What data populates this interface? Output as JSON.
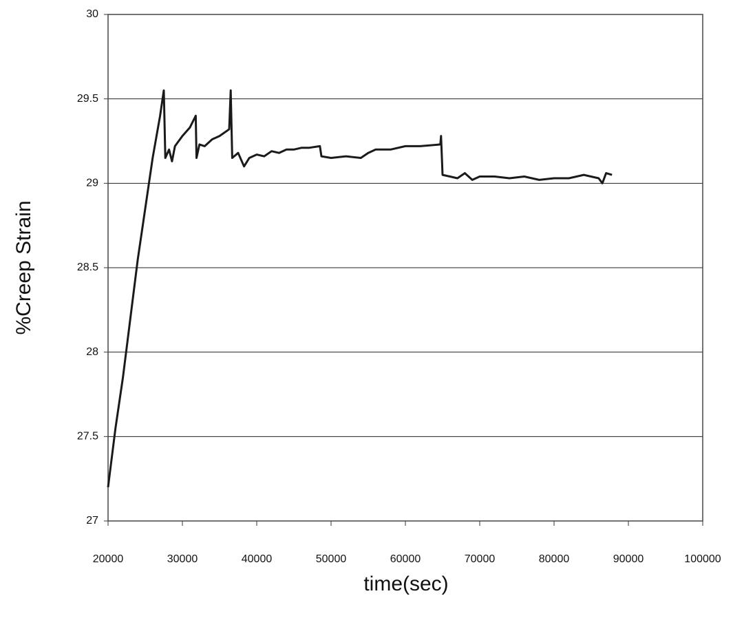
{
  "chart_data": {
    "type": "line",
    "x_label": "time(sec)",
    "y_label": "%Creep Strain",
    "xlim": [
      20000,
      100000
    ],
    "xticks": [
      20000,
      30000,
      40000,
      50000,
      60000,
      70000,
      80000,
      90000,
      100000
    ],
    "ylim": [
      27,
      30
    ],
    "yticks": [
      27,
      27.5,
      28,
      28.5,
      29,
      29.5,
      30
    ],
    "grid": true,
    "series": [
      {
        "color": "#1a1a1a",
        "x": [
          20000,
          21000,
          22000,
          23000,
          24000,
          25000,
          26000,
          27000,
          27500,
          27700,
          28200,
          28600,
          29000,
          30000,
          31000,
          31800,
          31900,
          32300,
          33000,
          34000,
          35000,
          36300,
          36500,
          36700,
          37500,
          38300,
          39000,
          40000,
          41000,
          42000,
          43000,
          44000,
          45000,
          46000,
          47000,
          48500,
          48700,
          50000,
          52000,
          54000,
          55000,
          56000,
          58000,
          60000,
          62000,
          64700,
          64800,
          65000,
          66000,
          67000,
          68000,
          69000,
          70000,
          72000,
          74000,
          76000,
          78000,
          80000,
          82000,
          84000,
          86000,
          86500,
          87000,
          87800
        ],
        "values": [
          27.2,
          27.55,
          27.85,
          28.2,
          28.55,
          28.85,
          29.15,
          29.4,
          29.55,
          29.15,
          29.2,
          29.13,
          29.22,
          29.28,
          29.33,
          29.4,
          29.15,
          29.23,
          29.22,
          29.26,
          29.28,
          29.32,
          29.55,
          29.15,
          29.18,
          29.1,
          29.15,
          29.17,
          29.16,
          29.19,
          29.18,
          29.2,
          29.2,
          29.21,
          29.21,
          29.22,
          29.16,
          29.15,
          29.16,
          29.15,
          29.18,
          29.2,
          29.2,
          29.22,
          29.22,
          29.23,
          29.28,
          29.05,
          29.04,
          29.03,
          29.06,
          29.02,
          29.04,
          29.04,
          29.03,
          29.04,
          29.02,
          29.03,
          29.03,
          29.05,
          29.03,
          29.0,
          29.06,
          29.05
        ]
      }
    ]
  }
}
